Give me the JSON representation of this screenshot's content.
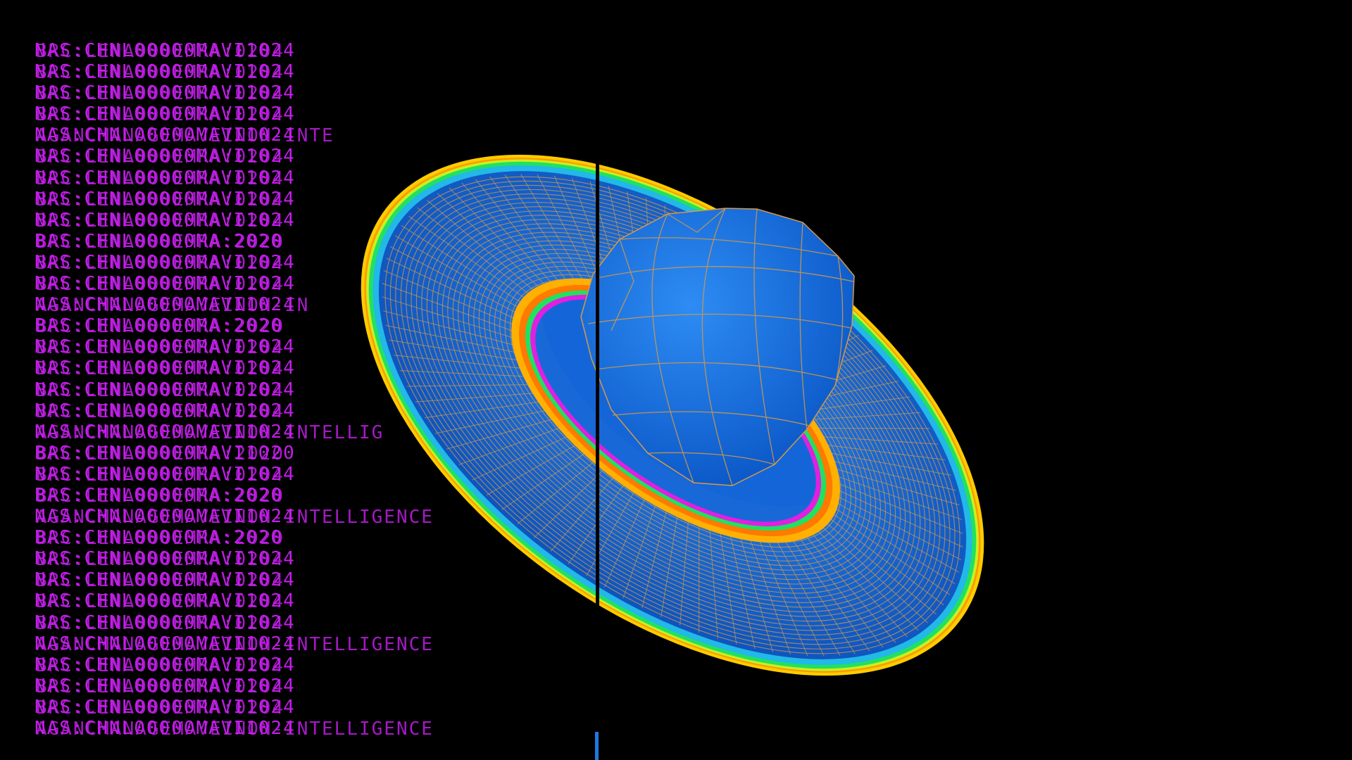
{
  "window": {
    "background": "#000000"
  },
  "scene": {
    "object": "torus with central sphere, blue surface with orange wireframe and rainbow contour rim",
    "colors": {
      "surface": "#1466d8",
      "wireframe": "#d49a48",
      "rim_outer": "#ffcc00",
      "rim_mid": "#22e060",
      "rim_inner": "#22b8e8",
      "inner_hole": "#ffb000",
      "divider": "#000000",
      "marker": "#1e78e0"
    }
  },
  "log": {
    "color": "#c21ee8",
    "lines": [
      [
        "NAS:CHNL00000MAVI1024",
        "BRC:LENA000EMRA:0204"
      ],
      [
        "NAS:CHNL00000MAVI1024",
        "BRC:LENA000EMRA:0204"
      ],
      [
        "NAS:CHNL00000MAVI1024",
        "BRC:LENA000EMRA:0204"
      ],
      [
        "NAS:CHNL00000MAVI1024",
        "BRC:LENA000EMRA:0204"
      ],
      [
        "NAS:CHNL00000MAVI1024",
        "AGANCMANAGEMAVEINON-INTE"
      ],
      [
        "NAS:CHNL00000MAVI1024",
        "BRC:LENA000EMRA:0204"
      ],
      [
        "NAS:CHNL00000MAVI1024",
        "BRC:LENA000EMRA:0204"
      ],
      [
        "NAS:CHNL00000MAVI1024",
        "BRC:LENA000EMRA:0204"
      ],
      [
        "NAS:CHNL00000MAVI1024",
        "BRC:LENA000EMRA:0204"
      ],
      [
        "BAS:CHNL00000MA:2020",
        "BRC:LENA000EMRA:2020"
      ],
      [
        "NAS:CHNL00000MAVI1024",
        "BRC:LENA000EMRA:0204"
      ],
      [
        "NAS:CHNL00000MAVI1024",
        "BRC:LENA000EMRA:0204"
      ],
      [
        "NAS:CHNL00000MAVI1024",
        "AGANCMANAGEMAVEINON-IN"
      ],
      [
        "BAS:CHNL00000MA:2020",
        "BRC:LENA000EMRA:2020"
      ],
      [
        "NAS:CHNL00000MAVI1024",
        "BRC:LENA000EMRA:0204"
      ],
      [
        "NAS:CHNL00000MAVI1024",
        "BRC:LENA000EMRA:0204"
      ],
      [
        "NAS:CHNL00000MAVI1024",
        "BRC:LENA000EMRA:0204"
      ],
      [
        "NAS:CHNL00000MAVI1024",
        "BRC:LENA000EMRA:0204"
      ],
      [
        "NAS:CHNL00000MAVI1024",
        "AGANCMANAGEMAVEINON-INTELLIG"
      ],
      [
        "BAS:CHNL00000MAVI1020",
        "BRC:LENA000EMRA:2020"
      ],
      [
        "NAS:CHNL00000MAVI1024",
        "BRC:LENA000EMRA:0204"
      ],
      [
        "BAS:CHNL00000MA:2020",
        "BRC:LENA000EMRA:2020"
      ],
      [
        "NAS:CHNL00000MAVI1024",
        "AGANCMANAGEMAVEINON-INTELLIGENCE"
      ],
      [
        "BAS:CHNL00000MA:2020",
        "BRC:LENA000EMRA:2020"
      ],
      [
        "NAS:CHNL00000MAVI1024",
        "BRC:LENA000EMRA:0204"
      ],
      [
        "NAS:CHNL00000MAVI1024",
        "BRC:LENA000EMRA:0204"
      ],
      [
        "NAS:CHNL00000MAVI1024",
        "BRC:LENA000EMRA:0204"
      ],
      [
        "NAS:CHNL00000MAVI1024",
        "BRC:LENA000EMRA:0204"
      ],
      [
        "NAS:CHNL00000MAVI1024",
        "AGANCMANAGEMAVEINON-INTELLIGENCE"
      ],
      [
        "NAS:CHNL00000MAVI1024",
        "BRC:LENA000EMRA:0204"
      ],
      [
        "NAS:CHNL00000MAVI1024",
        "BRC:LENA000EMRA:0204"
      ],
      [
        "NAS:CHNL00000MAVI1024",
        "BRC:LENA000EMRA:0204"
      ],
      [
        "NAS:CHNL00000MAVI1024",
        "AGANCMANAGEMAVEINON-INTELLIGENCE"
      ]
    ]
  }
}
